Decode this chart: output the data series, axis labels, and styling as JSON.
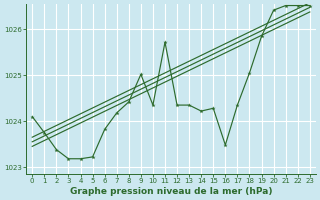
{
  "xlabel": "Graphe pression niveau de la mer (hPa)",
  "bg_color": "#cce8f0",
  "grid_color": "#ffffff",
  "line_color": "#2d6b2d",
  "x": [
    0,
    1,
    2,
    3,
    4,
    5,
    6,
    7,
    8,
    9,
    10,
    11,
    12,
    13,
    14,
    15,
    16,
    17,
    18,
    19,
    20,
    21,
    22,
    23
  ],
  "y_main": [
    1024.1,
    1023.75,
    1023.38,
    1023.18,
    1023.18,
    1023.22,
    1023.82,
    1024.18,
    1024.42,
    1025.02,
    1024.35,
    1025.72,
    1024.35,
    1024.35,
    1024.22,
    1024.28,
    1023.48,
    1024.35,
    1025.05,
    1025.85,
    1026.42,
    1026.52,
    1026.52,
    1026.52
  ],
  "ylim_min": 1022.85,
  "ylim_max": 1026.55,
  "yticks": [
    1023,
    1024,
    1025,
    1026
  ],
  "xticks": [
    0,
    1,
    2,
    3,
    4,
    5,
    6,
    7,
    8,
    9,
    10,
    11,
    12,
    13,
    14,
    15,
    16,
    17,
    18,
    19,
    20,
    21,
    22,
    23
  ],
  "trend_lines": [
    {
      "x0": 0,
      "y0": 1023.55,
      "x1": 23,
      "y1": 1026.48
    },
    {
      "x0": 0,
      "y0": 1023.45,
      "x1": 23,
      "y1": 1026.38
    },
    {
      "x0": 0,
      "y0": 1023.65,
      "x1": 23,
      "y1": 1026.58
    }
  ]
}
